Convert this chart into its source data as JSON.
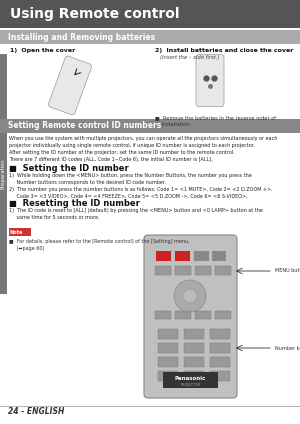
{
  "title": "Using Remote control",
  "title_bg": "#555555",
  "title_color": "#ffffff",
  "section1_title": "Installing and Removing batteries",
  "section1_bg": "#aaaaaa",
  "section2_title": "Setting Remote control ID numbers",
  "section2_bg": "#888888",
  "bg_color": "#ffffff",
  "page_label": "24 - ENGLISH",
  "sidebar_text": "Preparation",
  "sidebar_bg": "#777777",
  "body_bg": "#ffffff",
  "step1_label": "1)  Open the cover",
  "step2_label": "2)  Install batteries and close the cover",
  "step2_sub": "(Insert the – side first.)",
  "bullet_text": "■  Remove the batteries in the reverse order of\n    installation.",
  "intro_text": "When you use the system with multiple projectors, you can operate all the projectors simultaneously or each\nprojector individually using single remote control, if unique ID number is assigned to each projector.\nAfter setting the ID number of the projector, set the same ID number to the remote control.\nThere are 7 different ID codes (ALL, Code 1~Code 6), the initial ID number is [ALL].",
  "setting_header": "■  Setting the ID number",
  "setting_body": "1)  While holding down the <MENU> button, press the Number Buttons, the number you press the\n     Number buttons corresponds to the desired ID code number.\n2)  The number you press the number buttons is as follows: Code 1= <1 MUTE>, Code 2= <2 D.ZOOM +>,\n     Code 3= <3 VIDEO>, Code 4= <4 FREEZE>, Code 5= <5 D.ZOOM ->, Code 6= <6 S-VIDEO>.",
  "reset_header": "■  Resetting the ID number",
  "reset_body": "1)  The ID code is reset to [ALL] (default) by pressing the <MENU> button and <0 LAMP> button at the\n     same time for 5 seconds or more.",
  "note_label": "Note",
  "note_bg": "#cc3333",
  "note_text": "■  For details, please refer to the [Remote control] of the [Setting] menu.\n     (➡page 60)",
  "menu_button_label": "MENU button",
  "number_button_label": "Number buttons"
}
